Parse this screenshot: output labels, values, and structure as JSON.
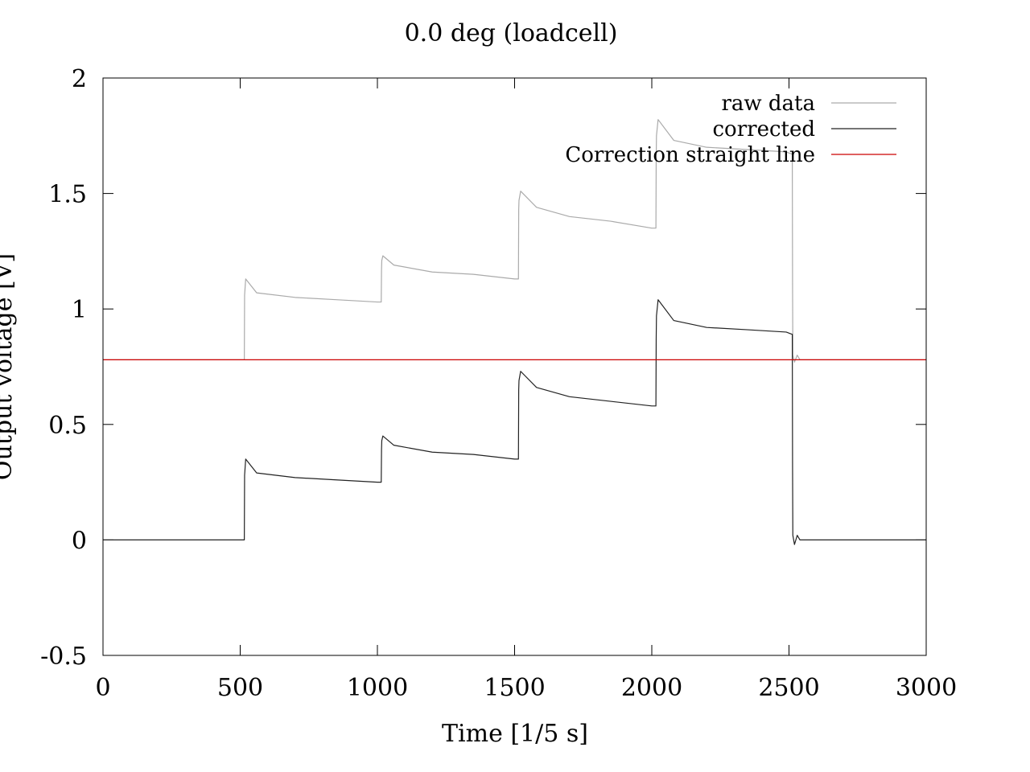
{
  "chart_data": {
    "type": "line",
    "title": "0.0 deg (loadcell)",
    "xlabel": "Time [1/5 s]",
    "ylabel": "Output voltage [V]",
    "xlim": [
      0,
      3000
    ],
    "ylim": [
      -0.5,
      2
    ],
    "x_ticks": [
      0,
      500,
      1000,
      1500,
      2000,
      2500,
      3000
    ],
    "y_ticks": [
      -0.5,
      0,
      0.5,
      1,
      1.5,
      2
    ],
    "x_tick_labels": [
      "0",
      "500",
      "1000",
      "1500",
      "2000",
      "2500",
      "3000"
    ],
    "y_tick_labels": [
      "-0.5",
      "0",
      "0.5",
      "1",
      "1.5",
      "2"
    ],
    "grid": false,
    "legend_position": "top-right",
    "series": [
      {
        "name": "raw data",
        "color": "#aaaaaa",
        "x": [
          0,
          515,
          516,
          520,
          560,
          700,
          850,
          1000,
          1014,
          1015,
          1016,
          1020,
          1060,
          1200,
          1350,
          1500,
          1514,
          1515,
          1516,
          1522,
          1580,
          1700,
          1850,
          2000,
          2015,
          2016,
          2017,
          2023,
          2080,
          2200,
          2350,
          2490,
          2512,
          2513,
          2514,
          2520,
          2530,
          2540,
          2560,
          3000
        ],
        "y": [
          0.78,
          0.78,
          1.06,
          1.13,
          1.07,
          1.05,
          1.04,
          1.03,
          1.03,
          1.17,
          1.21,
          1.23,
          1.19,
          1.16,
          1.15,
          1.13,
          1.13,
          1.43,
          1.47,
          1.51,
          1.44,
          1.4,
          1.38,
          1.35,
          1.35,
          1.65,
          1.75,
          1.82,
          1.73,
          1.7,
          1.69,
          1.68,
          1.67,
          1.1,
          0.8,
          0.77,
          0.8,
          0.78,
          0.78,
          0.78
        ]
      },
      {
        "name": "corrected",
        "color": "#222222",
        "x": [
          0,
          515,
          516,
          520,
          560,
          700,
          850,
          1000,
          1014,
          1015,
          1016,
          1020,
          1060,
          1200,
          1350,
          1500,
          1514,
          1515,
          1516,
          1522,
          1580,
          1700,
          1850,
          2000,
          2015,
          2016,
          2017,
          2023,
          2080,
          2200,
          2350,
          2490,
          2512,
          2513,
          2514,
          2520,
          2530,
          2540,
          2560,
          3000
        ],
        "y": [
          0.0,
          0.0,
          0.28,
          0.35,
          0.29,
          0.27,
          0.26,
          0.25,
          0.25,
          0.39,
          0.43,
          0.45,
          0.41,
          0.38,
          0.37,
          0.35,
          0.35,
          0.65,
          0.69,
          0.73,
          0.66,
          0.62,
          0.6,
          0.58,
          0.58,
          0.87,
          0.97,
          1.04,
          0.95,
          0.92,
          0.91,
          0.9,
          0.89,
          0.32,
          0.02,
          -0.02,
          0.02,
          0.0,
          0.0,
          0.0
        ]
      },
      {
        "name": "Correction straight line",
        "color": "#cc0000",
        "x": [
          0,
          3000
        ],
        "y": [
          0.78,
          0.78
        ]
      }
    ]
  }
}
